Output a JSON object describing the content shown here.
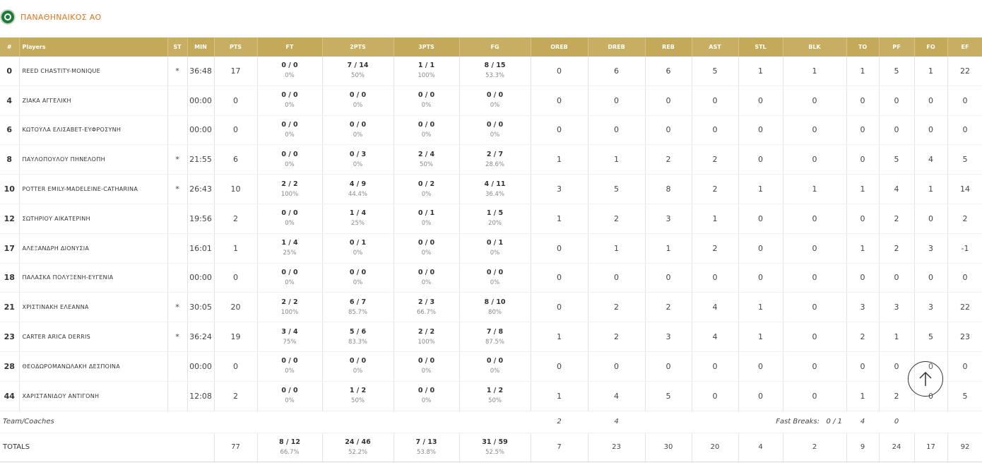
{
  "team": {
    "name": "ΠΑΝΑΘΗΝΑΙΚΟΣ ΑΟ",
    "logo_icon": "club-logo-icon"
  },
  "headers": [
    "#",
    "Players",
    "ST",
    "MIN",
    "PTS",
    "FT",
    "2PTS",
    "3PTS",
    "FG",
    "OREB",
    "DREB",
    "REB",
    "AST",
    "STL",
    "BLK",
    "TO",
    "PF",
    "FO",
    "EF"
  ],
  "players": [
    {
      "num": "0",
      "name": "REED CHASTITY-MONIQUE",
      "st": "*",
      "min": "36:48",
      "pts": "17",
      "ft": "0 / 0",
      "ft_pct": "0%",
      "p2": "7 / 14",
      "p2_pct": "50%",
      "p3": "1 / 1",
      "p3_pct": "100%",
      "fg": "8 / 15",
      "fg_pct": "53.3%",
      "oreb": "0",
      "dreb": "6",
      "reb": "6",
      "ast": "5",
      "stl": "1",
      "blk": "1",
      "to": "1",
      "pf": "5",
      "fo": "1",
      "ef": "22"
    },
    {
      "num": "4",
      "name": "ΖΙΑΚΑ ΑΓΓΕΛΙΚΗ",
      "st": "",
      "min": "00:00",
      "pts": "0",
      "ft": "0 / 0",
      "ft_pct": "0%",
      "p2": "0 / 0",
      "p2_pct": "0%",
      "p3": "0 / 0",
      "p3_pct": "0%",
      "fg": "0 / 0",
      "fg_pct": "0%",
      "oreb": "0",
      "dreb": "0",
      "reb": "0",
      "ast": "0",
      "stl": "0",
      "blk": "0",
      "to": "0",
      "pf": "0",
      "fo": "0",
      "ef": "0"
    },
    {
      "num": "6",
      "name": "ΚΩΤΟΥΛΑ ΕΛΙΣΑΒΕΤ-ΕΥΦΡΟΣΥΝΗ",
      "st": "",
      "min": "00:00",
      "pts": "0",
      "ft": "0 / 0",
      "ft_pct": "0%",
      "p2": "0 / 0",
      "p2_pct": "0%",
      "p3": "0 / 0",
      "p3_pct": "0%",
      "fg": "0 / 0",
      "fg_pct": "0%",
      "oreb": "0",
      "dreb": "0",
      "reb": "0",
      "ast": "0",
      "stl": "0",
      "blk": "0",
      "to": "0",
      "pf": "0",
      "fo": "0",
      "ef": "0"
    },
    {
      "num": "8",
      "name": "ΠΑΥΛΟΠΟΥΛΟΥ ΠΗΝΕΛΟΠΗ",
      "st": "*",
      "min": "21:55",
      "pts": "6",
      "ft": "0 / 0",
      "ft_pct": "0%",
      "p2": "0 / 3",
      "p2_pct": "0%",
      "p3": "2 / 4",
      "p3_pct": "50%",
      "fg": "2 / 7",
      "fg_pct": "28.6%",
      "oreb": "1",
      "dreb": "1",
      "reb": "2",
      "ast": "2",
      "stl": "0",
      "blk": "0",
      "to": "0",
      "pf": "5",
      "fo": "4",
      "ef": "5"
    },
    {
      "num": "10",
      "name": "POTTER EMILY-MADELEINE-CATHARINA",
      "st": "*",
      "min": "26:43",
      "pts": "10",
      "ft": "2 / 2",
      "ft_pct": "100%",
      "p2": "4 / 9",
      "p2_pct": "44.4%",
      "p3": "0 / 2",
      "p3_pct": "0%",
      "fg": "4 / 11",
      "fg_pct": "36.4%",
      "oreb": "3",
      "dreb": "5",
      "reb": "8",
      "ast": "2",
      "stl": "1",
      "blk": "1",
      "to": "1",
      "pf": "4",
      "fo": "1",
      "ef": "14"
    },
    {
      "num": "12",
      "name": "ΣΩΤΗΡΙΟΥ ΑΙΚΑΤΕΡΙΝΗ",
      "st": "",
      "min": "19:56",
      "pts": "2",
      "ft": "0 / 0",
      "ft_pct": "0%",
      "p2": "1 / 4",
      "p2_pct": "25%",
      "p3": "0 / 1",
      "p3_pct": "0%",
      "fg": "1 / 5",
      "fg_pct": "20%",
      "oreb": "1",
      "dreb": "2",
      "reb": "3",
      "ast": "1",
      "stl": "0",
      "blk": "0",
      "to": "0",
      "pf": "2",
      "fo": "0",
      "ef": "2"
    },
    {
      "num": "17",
      "name": "ΑΛΕΞΑΝΔΡΗ ΔΙΟΝΥΣΙΑ",
      "st": "",
      "min": "16:01",
      "pts": "1",
      "ft": "1 / 4",
      "ft_pct": "25%",
      "p2": "0 / 1",
      "p2_pct": "0%",
      "p3": "0 / 0",
      "p3_pct": "0%",
      "fg": "0 / 1",
      "fg_pct": "0%",
      "oreb": "0",
      "dreb": "1",
      "reb": "1",
      "ast": "2",
      "stl": "0",
      "blk": "0",
      "to": "1",
      "pf": "2",
      "fo": "3",
      "ef": "-1"
    },
    {
      "num": "18",
      "name": "ΠΑΛΑΣΚΑ ΠΟΛΥΞΕΝΗ-ΕΥΓΕΝΙΑ",
      "st": "",
      "min": "00:00",
      "pts": "0",
      "ft": "0 / 0",
      "ft_pct": "0%",
      "p2": "0 / 0",
      "p2_pct": "0%",
      "p3": "0 / 0",
      "p3_pct": "0%",
      "fg": "0 / 0",
      "fg_pct": "0%",
      "oreb": "0",
      "dreb": "0",
      "reb": "0",
      "ast": "0",
      "stl": "0",
      "blk": "0",
      "to": "0",
      "pf": "0",
      "fo": "0",
      "ef": "0"
    },
    {
      "num": "21",
      "name": "ΧΡΙΣΤΙΝΑΚΗ ΕΛΕΑΝΝΑ",
      "st": "*",
      "min": "30:05",
      "pts": "20",
      "ft": "2 / 2",
      "ft_pct": "100%",
      "p2": "6 / 7",
      "p2_pct": "85.7%",
      "p3": "2 / 3",
      "p3_pct": "66.7%",
      "fg": "8 / 10",
      "fg_pct": "80%",
      "oreb": "0",
      "dreb": "2",
      "reb": "2",
      "ast": "4",
      "stl": "1",
      "blk": "0",
      "to": "3",
      "pf": "3",
      "fo": "3",
      "ef": "22"
    },
    {
      "num": "23",
      "name": "CARTER ARICA DERRIS",
      "st": "*",
      "min": "36:24",
      "pts": "19",
      "ft": "3 / 4",
      "ft_pct": "75%",
      "p2": "5 / 6",
      "p2_pct": "83.3%",
      "p3": "2 / 2",
      "p3_pct": "100%",
      "fg": "7 / 8",
      "fg_pct": "87.5%",
      "oreb": "1",
      "dreb": "2",
      "reb": "3",
      "ast": "4",
      "stl": "1",
      "blk": "0",
      "to": "2",
      "pf": "1",
      "fo": "5",
      "ef": "23"
    },
    {
      "num": "28",
      "name": "ΘΕΟΔΩΡΟΜΑΝΩΛΑΚΗ ΔΕΣΠΟΙΝΑ",
      "st": "",
      "min": "00:00",
      "pts": "0",
      "ft": "0 / 0",
      "ft_pct": "0%",
      "p2": "0 / 0",
      "p2_pct": "0%",
      "p3": "0 / 0",
      "p3_pct": "0%",
      "fg": "0 / 0",
      "fg_pct": "0%",
      "oreb": "0",
      "dreb": "0",
      "reb": "0",
      "ast": "0",
      "stl": "0",
      "blk": "0",
      "to": "0",
      "pf": "0",
      "fo": "0",
      "ef": "0"
    },
    {
      "num": "44",
      "name": "ΧΑΡΙΣΤΑΝΙΔΟΥ ΑΝΤΙΓΟΝΗ",
      "st": "",
      "min": "12:08",
      "pts": "2",
      "ft": "0 / 0",
      "ft_pct": "0%",
      "p2": "1 / 2",
      "p2_pct": "50%",
      "p3": "0 / 0",
      "p3_pct": "0%",
      "fg": "1 / 2",
      "fg_pct": "50%",
      "oreb": "1",
      "dreb": "4",
      "reb": "5",
      "ast": "0",
      "stl": "0",
      "blk": "0",
      "to": "1",
      "pf": "2",
      "fo": "0",
      "ef": "5"
    }
  ],
  "team_coaches": {
    "label": "Team/Coaches",
    "oreb": "2",
    "dreb": "4",
    "fast_breaks_label": "Fast Breaks:",
    "fast_breaks": "0 / 1",
    "to": "4",
    "pf": "0"
  },
  "totals": {
    "label": "TOTALS",
    "pts": "77",
    "ft": "8 / 12",
    "ft_pct": "66.7%",
    "p2": "24 / 46",
    "p2_pct": "52.2%",
    "p3": "7 / 13",
    "p3_pct": "53.8%",
    "fg": "31 / 59",
    "fg_pct": "52.5%",
    "oreb": "7",
    "dreb": "23",
    "reb": "30",
    "ast": "20",
    "stl": "4",
    "blk": "2",
    "to": "9",
    "pf": "24",
    "fo": "17",
    "ef": "92"
  },
  "scroll_top_icon": "arrow-up-icon",
  "colors": {
    "header_bg": "#c8ae62",
    "team_name": "#e0761b",
    "logo": "#1f7a3a"
  }
}
